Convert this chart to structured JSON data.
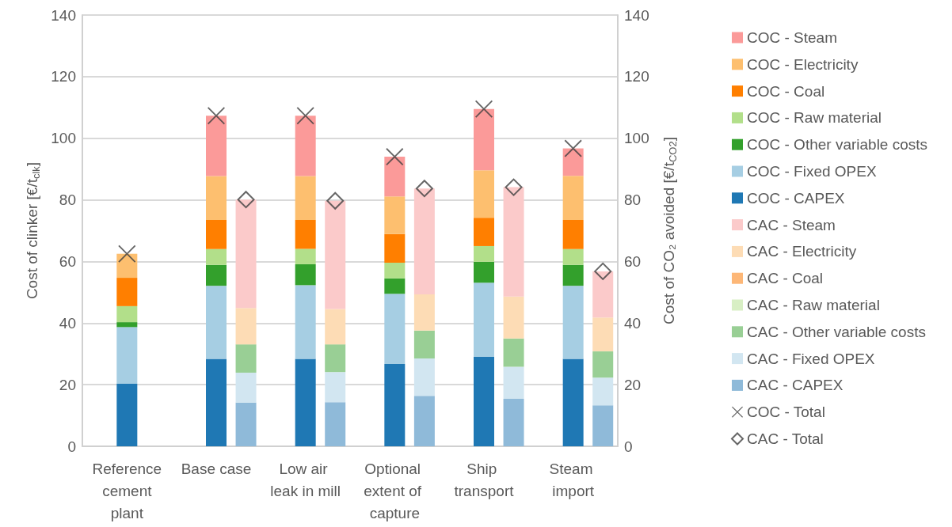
{
  "chart_data": {
    "type": "bar",
    "stacked": true,
    "categories": [
      "Reference cement plant",
      "Base case",
      "Low air leak in mill",
      "Optional extent of capture",
      "Ship transport",
      "Steam import"
    ],
    "ylabel": "Cost of clinker [€/t$_{clk}$]",
    "y2label": "Cost of CO₂ avoided [€/t$_{CO2}$]",
    "ylim": [
      0,
      140
    ],
    "yticks": [
      0,
      20,
      40,
      60,
      80,
      100,
      120,
      140
    ],
    "y2lim": [
      0,
      140
    ],
    "y2ticks": [
      0,
      20,
      40,
      60,
      80,
      100,
      120,
      140
    ],
    "grid": "y",
    "legend": "right",
    "series": [
      {
        "name": "COC - CAPEX",
        "color": "#1f78b4",
        "values": [
          20.3,
          28.4,
          28.4,
          26.7,
          29.0,
          28.4
        ]
      },
      {
        "name": "COC - Fixed OPEX",
        "color": "#a6cee3",
        "values": [
          18.4,
          23.7,
          23.9,
          22.8,
          24.1,
          23.7
        ]
      },
      {
        "name": "COC - Other variable costs",
        "color": "#33a02c",
        "values": [
          1.6,
          6.8,
          6.8,
          5.0,
          6.8,
          6.8
        ]
      },
      {
        "name": "COC - Raw material",
        "color": "#b2df8a",
        "values": [
          5.2,
          5.1,
          5.0,
          5.1,
          5.1,
          5.1
        ]
      },
      {
        "name": "COC - Coal",
        "color": "#ff7f00",
        "values": [
          9.2,
          9.5,
          9.4,
          9.3,
          9.2,
          9.5
        ]
      },
      {
        "name": "COC - Electricity",
        "color": "#fdbf6f",
        "values": [
          7.8,
          14.2,
          14.2,
          12.2,
          15.4,
          14.3
        ]
      },
      {
        "name": "COC - Steam",
        "color": "#fb9a99",
        "values": [
          0,
          19.6,
          19.6,
          12.9,
          19.9,
          8.9
        ]
      },
      {
        "name": "CAC - CAPEX",
        "color": "#8fbad9",
        "axis": "y2",
        "values": [
          null,
          14.2,
          14.3,
          16.4,
          15.4,
          13.3
        ]
      },
      {
        "name": "CAC - Fixed OPEX",
        "color": "#d2e6f1",
        "axis": "y2",
        "values": [
          null,
          9.7,
          9.8,
          12.1,
          10.4,
          9.0
        ]
      },
      {
        "name": "CAC - Other variable costs",
        "color": "#99cf95",
        "axis": "y2",
        "values": [
          null,
          9.2,
          9.0,
          9.1,
          9.2,
          8.5
        ]
      },
      {
        "name": "CAC - Raw material",
        "color": "#d8efc4",
        "axis": "y2",
        "values": [
          null,
          0,
          0,
          0,
          0,
          0
        ]
      },
      {
        "name": "CAC - Coal",
        "color": "#fdb777",
        "axis": "y2",
        "values": [
          null,
          0,
          0,
          0,
          0,
          0
        ]
      },
      {
        "name": "CAC - Electricity",
        "color": "#fddcb5",
        "axis": "y2",
        "values": [
          null,
          11.8,
          11.5,
          11.7,
          13.6,
          11.0
        ]
      },
      {
        "name": "CAC - Steam",
        "color": "#fbcaca",
        "axis": "y2",
        "values": [
          null,
          35.2,
          35.1,
          34.4,
          35.5,
          15.0
        ]
      },
      {
        "name": "COC - Total",
        "type": "scatter",
        "marker": "cross",
        "color": "#404040",
        "x": [
          "Reference cement plant",
          "Base case",
          "Low air leak in mill",
          "Optional extent of capture",
          "Ship transport",
          "Steam import"
        ],
        "values": [
          62.5,
          107.3,
          107.3,
          94.0,
          109.5,
          96.7
        ]
      },
      {
        "name": "CAC - Total",
        "type": "scatter",
        "marker": "diamond",
        "color": "#404040",
        "axis": "y2",
        "x": [
          "Reference cement plant",
          "Base case",
          "Low air leak in mill",
          "Optional extent of capture",
          "Ship transport",
          "Steam import"
        ],
        "values": [
          null,
          80.1,
          79.7,
          83.7,
          84.1,
          56.8
        ]
      }
    ]
  }
}
